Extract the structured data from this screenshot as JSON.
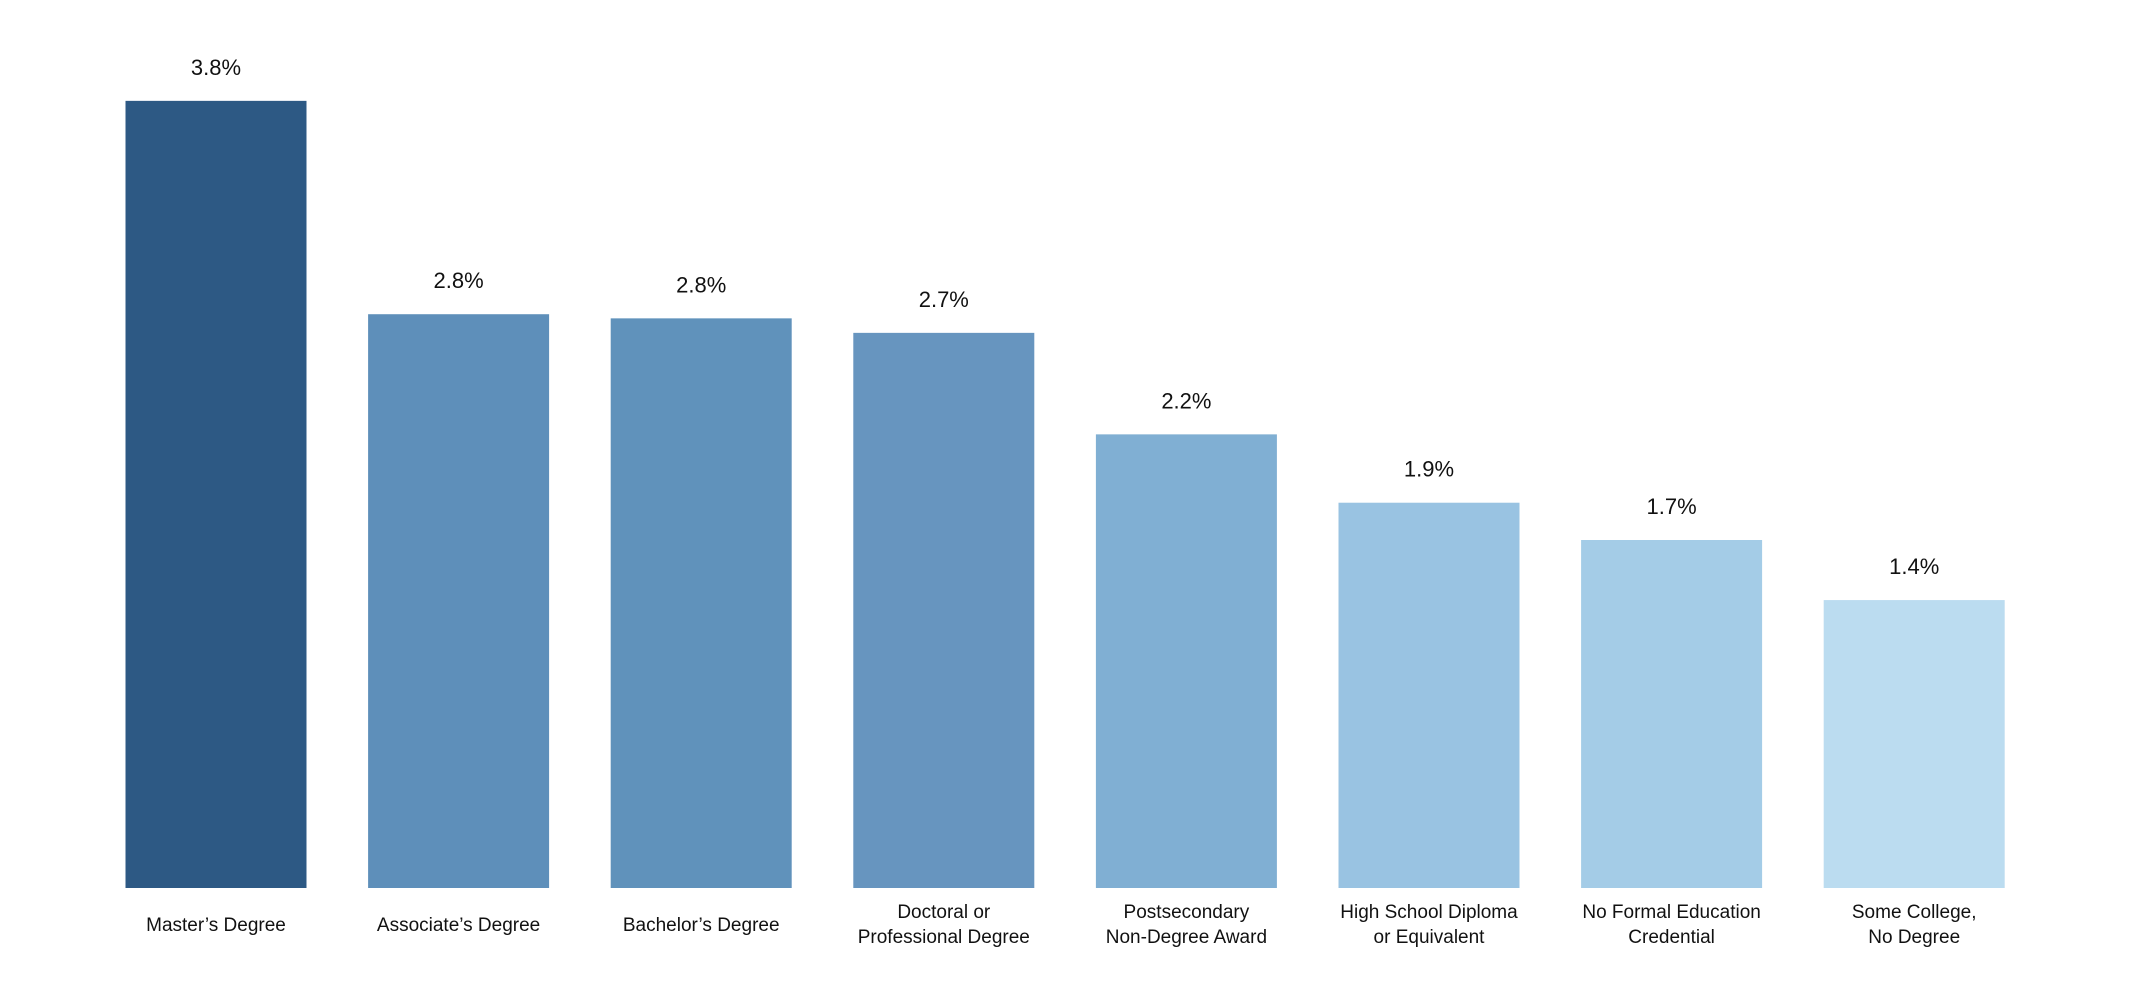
{
  "chart_data": {
    "type": "bar",
    "categories": [
      "Master’s Degree",
      "Associate’s Degree",
      "Bachelor’s Degree",
      "Doctoral or\nProfessional Degree",
      "Postsecondary\nNon-Degree Award",
      "High School Diploma\nor Equivalent",
      "No Formal Education\nCredential",
      "Some College,\nNo Degree"
    ],
    "values": [
      3.8,
      2.77,
      2.75,
      2.68,
      2.19,
      1.86,
      1.68,
      1.39
    ],
    "value_labels": [
      "3.8%",
      "2.8%",
      "2.8%",
      "2.7%",
      "2.2%",
      "1.9%",
      "1.7%",
      "1.4%"
    ],
    "colors": [
      "#2d5984",
      "#5e8fba",
      "#6092bb",
      "#6795bf",
      "#80afd3",
      "#99c3e2",
      "#a4cce7",
      "#bbdcf0"
    ],
    "ylim": [
      0,
      4.2
    ]
  }
}
